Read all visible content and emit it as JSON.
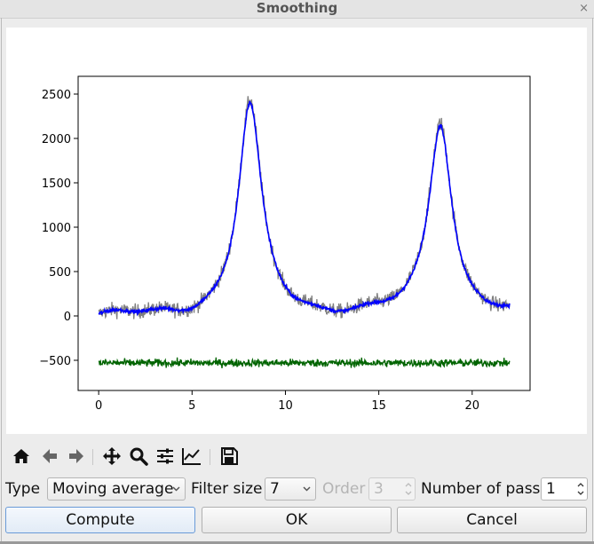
{
  "window": {
    "title": "Smoothing",
    "close_glyph": "×"
  },
  "toolbar": {
    "buttons": [
      {
        "name": "home-icon",
        "tooltip": "Home"
      },
      {
        "name": "back-arrow-icon",
        "tooltip": "Back"
      },
      {
        "name": "forward-arrow-icon",
        "tooltip": "Forward"
      },
      {
        "name": "pan-icon",
        "tooltip": "Pan"
      },
      {
        "name": "zoom-icon",
        "tooltip": "Zoom"
      },
      {
        "name": "configure-subplots-icon",
        "tooltip": "Subplots"
      },
      {
        "name": "edit-axis-icon",
        "tooltip": "Customize"
      },
      {
        "name": "save-icon",
        "tooltip": "Save"
      }
    ]
  },
  "controls": {
    "type_label": "Type",
    "type_value": "Moving average",
    "filter_size_label": "Filter size",
    "filter_size_value": "7",
    "order_label": "Order",
    "order_value": "3",
    "passes_label": "Number of pass",
    "passes_value": "1"
  },
  "buttons": {
    "compute": "Compute",
    "ok": "OK",
    "cancel": "Cancel"
  },
  "chart_data": {
    "type": "line",
    "title": "",
    "xlabel": "",
    "ylabel": "",
    "xlim": [
      -1.1,
      23.1
    ],
    "ylim": [
      -840,
      2700
    ],
    "xticks": [
      0,
      5,
      10,
      15,
      20
    ],
    "yticks": [
      -500,
      0,
      500,
      1000,
      1500,
      2000,
      2500
    ],
    "tick_labels_x": [
      "0",
      "5",
      "10",
      "15",
      "20"
    ],
    "tick_labels_y": [
      "−500",
      "0",
      "500",
      "1000",
      "1500",
      "2000",
      "2500"
    ],
    "grid": false,
    "legend": "none",
    "x_range": [
      0,
      22
    ],
    "series": [
      {
        "color": "#808080",
        "kind": "noisy-raw",
        "peaks": [
          {
            "center": 8.1,
            "height": 2400
          },
          {
            "center": 18.3,
            "height": 2200
          }
        ],
        "noise_amplitude": 110
      },
      {
        "color": "#0000ff",
        "kind": "smoothed",
        "peaks": [
          {
            "center": 8.1,
            "height": 2370
          },
          {
            "center": 18.3,
            "height": 2170
          }
        ],
        "noise_amplitude": 40
      },
      {
        "color": "#006400",
        "kind": "residual",
        "offset": -530,
        "noise_amplitude": 70
      }
    ]
  }
}
